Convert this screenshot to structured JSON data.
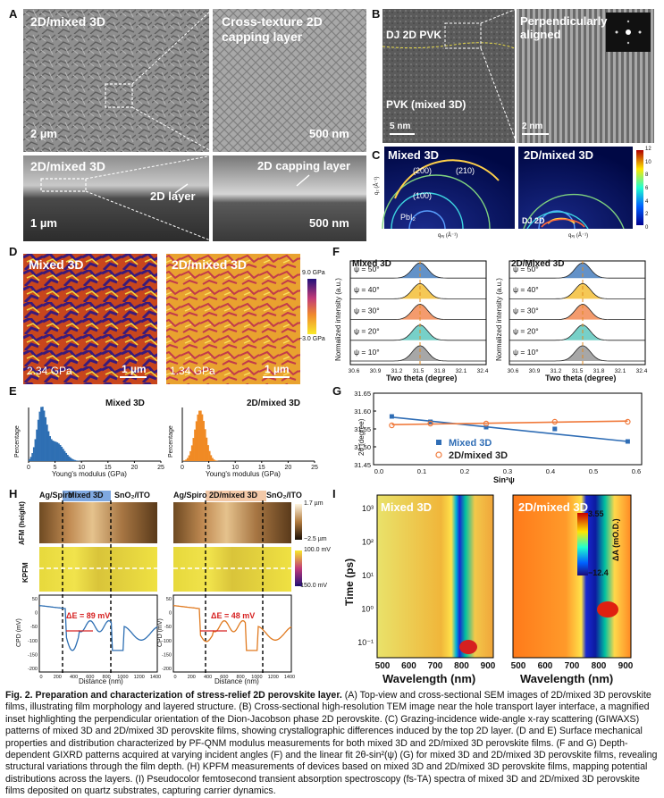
{
  "panel_letters": [
    "A",
    "B",
    "C",
    "D",
    "E",
    "F",
    "G",
    "H",
    "I"
  ],
  "panelA": {
    "tl_title": "2D/mixed 3D",
    "tl_scale": "2 µm",
    "tr_title": "Cross-texture 2D capping layer",
    "tr_scale": "500 nm",
    "bl_title": "2D/mixed 3D",
    "bl_label": "2D layer",
    "bl_scale": "1 µm",
    "br_label": "2D capping layer",
    "br_scale": "500 nm"
  },
  "panelB": {
    "dj_label": "DJ 2D PVK",
    "pvk_label": "PVK (mixed 3D)",
    "scale_left": "5 nm",
    "right_title": "Perpendicularly aligned",
    "scale_right": "2 nm"
  },
  "panelC": {
    "left_title": "Mixed 3D",
    "right_title": "2D/mixed 3D",
    "r200": "(200)",
    "r210": "(210)",
    "r100": "(100)",
    "pbi": "PbI₂",
    "dj": "DJ 2D",
    "ylabel": "q₂ (Å⁻¹)",
    "xlabel": "qₓᵧ (Å⁻¹)",
    "colorbar_ticks": [
      "12",
      "10",
      "8",
      "6",
      "4",
      "2",
      "0"
    ],
    "yticks": [
      "2.5",
      "2.0",
      "1.5",
      "1.0",
      "0.5",
      "0.0"
    ],
    "xticks": [
      "-1.0",
      "-0.5",
      "0.0",
      "0.5",
      "1.0",
      "1.5",
      "2.0"
    ]
  },
  "panelD": {
    "left_title": "Mixed 3D",
    "left_value": "2.34 GPa",
    "left_scale": "1 µm",
    "right_title": "2D/mixed 3D",
    "right_value": "1.34 GPa",
    "right_scale": "1 µm",
    "cb_top": "9.0 GPa",
    "cb_bottom": "−3.0 GPa"
  },
  "panelE": {
    "left_title": "Mixed 3D",
    "right_title": "2D/mixed 3D",
    "ylabel": "Percentage",
    "xlabel": "Young's modulus (GPa)",
    "xticks": [
      "0",
      "5",
      "10",
      "15",
      "20",
      "25"
    ],
    "colors": {
      "mixed": "#2e6fb3",
      "twod": "#f08a24"
    }
  },
  "panelF": {
    "left_title": "Mixed 3D",
    "right_title": "2D/Mixed 3D",
    "ylabel": "Normalized intensity (a.u.)",
    "xlabel": "Two theta (degree)",
    "psi": [
      "ψ = 50°",
      "ψ = 40°",
      "ψ = 30°",
      "ψ = 20°",
      "ψ = 10°"
    ],
    "psi_colors": [
      "#2f6db5",
      "#f2b51c",
      "#f07a3c",
      "#49c0b6",
      "#8a8a8a"
    ],
    "xticks": [
      "30.6",
      "30.9",
      "31.2",
      "31.5",
      "31.8",
      "32.1",
      "32.4"
    ]
  },
  "panelG": {
    "ylabel": "2θ (degree)",
    "xlabel": "Sin²ψ",
    "legend": [
      "Mixed 3D",
      "2D/mixed 3D"
    ],
    "yticks": [
      "31.65",
      "31.60",
      "31.55",
      "31.50",
      "31.45"
    ],
    "xticks": [
      "0.0",
      "0.1",
      "0.2",
      "0.3",
      "0.4",
      "0.5",
      "0.6"
    ]
  },
  "panelH": {
    "left_header": [
      "Ag/Spiro",
      "Mixed 3D",
      "SnO₂/ITO"
    ],
    "right_header": [
      "Ag/Spiro",
      "2D/mixed 3D",
      "SnO₂/ITO"
    ],
    "afm_label": "AFM (height)",
    "kpfm_label": "KPFM",
    "cpd_label": "CPD (mV)",
    "afm_cb": [
      "1.7 µm",
      "−2.5 µm"
    ],
    "kpfm_cb": [
      "100.0 mV",
      "−150.0 mV"
    ],
    "left_delta": "ΔE = 89 mV",
    "right_delta": "ΔE = 48 mV",
    "xlabel": "Distance (nm)",
    "xticks": [
      "0",
      "200",
      "400",
      "600",
      "800",
      "1000",
      "1200",
      "1400"
    ],
    "yticks": [
      "50",
      "0",
      "-50",
      "-100",
      "-150",
      "-200"
    ]
  },
  "panelI": {
    "left_title": "Mixed 3D",
    "right_title": "2D/mixed 3D",
    "ylabel": "Time (ps)",
    "xlabel": "Wavelength (nm)",
    "cb_top": "3.55",
    "cb_bottom": "−12.4",
    "cb_label": "ΔA (mO.D.)",
    "yticks": [
      "10³",
      "10²",
      "10¹",
      "10⁰",
      "10⁻¹"
    ],
    "xticks_left": [
      "500",
      "600",
      "700",
      "800",
      "900"
    ],
    "xticks_right": [
      "500",
      "600",
      "700",
      "800",
      "900"
    ]
  },
  "caption": {
    "lead": "Fig. 2. Preparation and characterization of stress-relief 2D perovskite layer.",
    "body": "(A) Top-view and cross-sectional SEM images of 2D/mixed 3D perovskite films, illustrating film morphology and layered structure. (B) Cross-sectional high-resolution TEM image near the hole transport layer interface, a magnified inset highlighting the perpendicular orientation of the Dion-Jacobson phase 2D perovskite. (C) Grazing-incidence wide-angle x-ray scattering (GIWAXS) patterns of mixed 3D and 2D/mixed 3D perovskite films, showing crystallographic differences induced by the top 2D layer. (D and E) Surface mechanical properties and distribution characterized by PF-QNM modulus measurements for both mixed 3D and 2D/mixed 3D perovskite films. (F and G) Depth-dependent GIXRD patterns acquired at varying incident angles (F) and the linear fit 2θ-sin²(ψ) (G) for mixed 3D and 2D/mixed 3D perovskite films, revealing structural variations through the film depth. (H) KPFM measurements of devices based on mixed 3D and 2D/mixed 3D perovskite films, mapping potential distributions across the layers. (I) Pseudocolor femtosecond transient absorption spectroscopy (fs-TA) spectra of mixed 3D and 2D/mixed 3D perovskite films deposited on quartz substrates, capturing carrier dynamics."
  }
}
